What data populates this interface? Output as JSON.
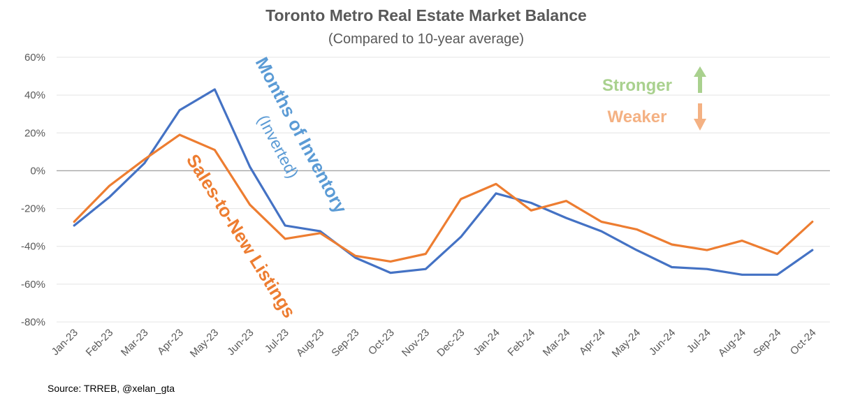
{
  "chart_data": {
    "type": "line",
    "title": "Toronto Metro Real Estate Market Balance",
    "subtitle": "(Compared to 10-year average)",
    "categories": [
      "Jan-23",
      "Feb-23",
      "Mar-23",
      "Apr-23",
      "May-23",
      "Jun-23",
      "Jul-23",
      "Aug-23",
      "Sep-23",
      "Oct-23",
      "Nov-23",
      "Dec-23",
      "Jan-24",
      "Feb-24",
      "Mar-24",
      "Apr-24",
      "May-24",
      "Jun-24",
      "Jul-24",
      "Aug-24",
      "Sep-24",
      "Oct-24"
    ],
    "series": [
      {
        "name": "Months of Inventory",
        "name_sub": "(Inverted)",
        "color": "#4472C4",
        "values": [
          -29,
          -14,
          4,
          32,
          43,
          2,
          -29,
          -32,
          -46,
          -54,
          -52,
          -35,
          -12,
          -17,
          -25,
          -32,
          -42,
          -51,
          -52,
          -55,
          -55,
          -42
        ]
      },
      {
        "name": "Sales-to-New Listings",
        "color": "#ED7D31",
        "values": [
          -27,
          -8,
          6,
          19,
          11,
          -18,
          -36,
          -33,
          -45,
          -48,
          -44,
          -15,
          -7,
          -21,
          -16,
          -27,
          -31,
          -39,
          -42,
          -37,
          -44,
          -27
        ]
      }
    ],
    "ylim": [
      -80,
      60
    ],
    "yticks": [
      60,
      40,
      20,
      0,
      -20,
      -40,
      -60,
      -80
    ],
    "ytick_labels": [
      "60%",
      "40%",
      "20%",
      "0%",
      "-20%",
      "-40%",
      "-60%",
      "-80%"
    ],
    "xlabel": "",
    "ylabel": "",
    "grid": true,
    "legend": {
      "stronger_label": "Stronger",
      "weaker_label": "Weaker",
      "stronger_color": "#A9D18E",
      "weaker_color": "#F4B183"
    },
    "source": "Source: TRREB, @xelan_gta"
  }
}
